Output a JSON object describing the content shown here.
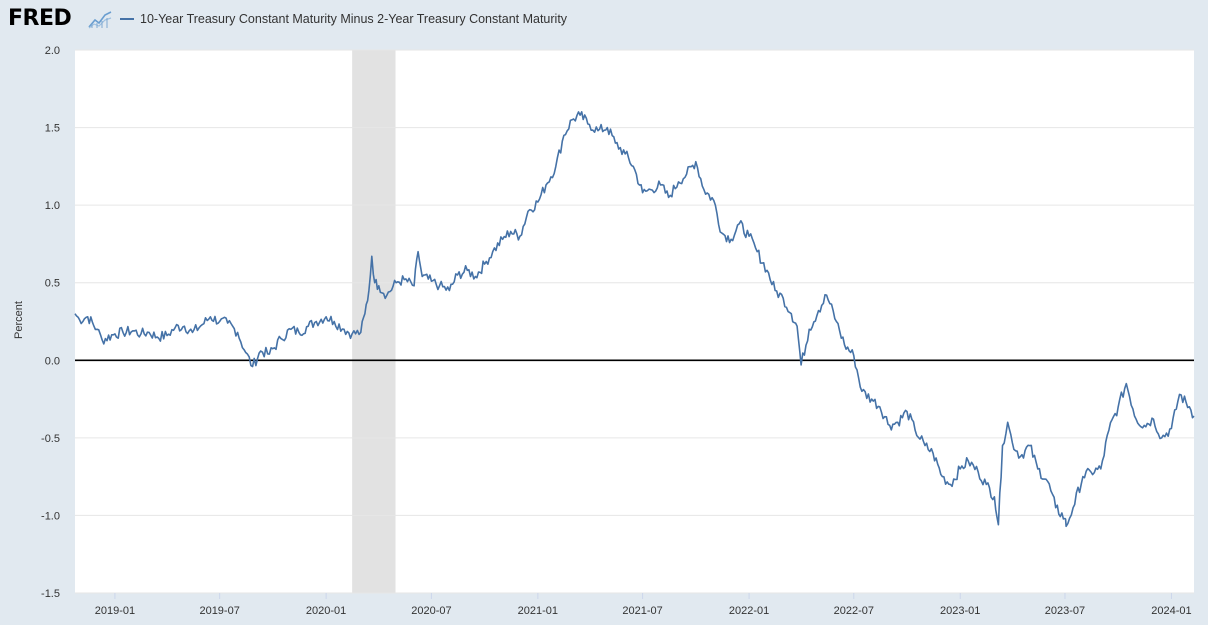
{
  "header": {
    "logo_text": "FRED",
    "legend_label": "10-Year Treasury Constant Maturity Minus 2-Year Treasury Constant Maturity"
  },
  "colors": {
    "series": "#4572a7",
    "recession": "#e2e2e2",
    "grid": "#e6e6e6",
    "background": "#e1e9f0",
    "plot": "#ffffff",
    "zero_line": "#000000"
  },
  "chart_data": {
    "type": "line",
    "title": "10-Year Treasury Constant Maturity Minus 2-Year Treasury Constant Maturity",
    "xlabel": "",
    "ylabel": "Percent",
    "xlim": [
      "2018-10-24",
      "2024-02-09"
    ],
    "ylim": [
      -1.5,
      2.0
    ],
    "yticks": [
      2.0,
      1.5,
      1.0,
      0.5,
      0.0,
      -0.5,
      -1.0,
      -1.5
    ],
    "ytick_labels": [
      "2.0",
      "1.5",
      "1.0",
      "0.5",
      "0.0",
      "-0.5",
      "-1.0",
      "-1.5"
    ],
    "xticks": [
      "2019-01-01",
      "2019-07-01",
      "2020-01-01",
      "2020-07-01",
      "2021-01-01",
      "2021-07-01",
      "2022-01-01",
      "2022-07-01",
      "2023-01-01",
      "2023-07-01",
      "2024-01-01"
    ],
    "xtick_labels": [
      "2019-01",
      "2019-07",
      "2020-01",
      "2020-07",
      "2021-01",
      "2021-07",
      "2022-01",
      "2022-07",
      "2023-01",
      "2023-07",
      "2024-01"
    ],
    "grid": true,
    "legend_position": "top-left",
    "recessions": [
      [
        "2020-02-15",
        "2020-04-30"
      ]
    ],
    "series": [
      {
        "name": "10-Year Treasury Constant Maturity Minus 2-Year Treasury Constant Maturity",
        "x": [
          "2018-10-24",
          "2018-11-01",
          "2018-11-15",
          "2018-12-01",
          "2018-12-10",
          "2019-01-01",
          "2019-01-15",
          "2019-02-01",
          "2019-02-15",
          "2019-03-01",
          "2019-03-15",
          "2019-04-01",
          "2019-04-15",
          "2019-05-01",
          "2019-05-15",
          "2019-06-01",
          "2019-06-15",
          "2019-07-01",
          "2019-07-15",
          "2019-08-01",
          "2019-08-15",
          "2019-08-27",
          "2019-09-10",
          "2019-09-25",
          "2019-10-15",
          "2019-11-01",
          "2019-11-15",
          "2019-12-01",
          "2019-12-15",
          "2020-01-01",
          "2020-01-15",
          "2020-02-01",
          "2020-02-15",
          "2020-03-01",
          "2020-03-08",
          "2020-03-15",
          "2020-03-20",
          "2020-03-25",
          "2020-04-01",
          "2020-04-15",
          "2020-05-01",
          "2020-05-15",
          "2020-06-01",
          "2020-06-08",
          "2020-06-15",
          "2020-07-01",
          "2020-07-15",
          "2020-08-01",
          "2020-08-15",
          "2020-09-01",
          "2020-09-15",
          "2020-10-01",
          "2020-10-15",
          "2020-11-01",
          "2020-11-15",
          "2020-12-01",
          "2020-12-15",
          "2021-01-01",
          "2021-01-15",
          "2021-02-01",
          "2021-02-15",
          "2021-03-01",
          "2021-03-15",
          "2021-03-31",
          "2021-04-15",
          "2021-05-01",
          "2021-05-15",
          "2021-06-01",
          "2021-06-15",
          "2021-07-01",
          "2021-07-15",
          "2021-08-01",
          "2021-08-15",
          "2021-09-01",
          "2021-09-15",
          "2021-10-01",
          "2021-10-15",
          "2021-11-01",
          "2021-11-15",
          "2021-12-01",
          "2021-12-15",
          "2022-01-01",
          "2022-01-15",
          "2022-02-01",
          "2022-02-15",
          "2022-03-01",
          "2022-03-15",
          "2022-03-25",
          "2022-04-01",
          "2022-04-15",
          "2022-05-01",
          "2022-05-15",
          "2022-06-01",
          "2022-06-15",
          "2022-07-01",
          "2022-07-15",
          "2022-08-01",
          "2022-08-15",
          "2022-09-01",
          "2022-09-15",
          "2022-10-01",
          "2022-10-15",
          "2022-11-01",
          "2022-11-15",
          "2022-12-01",
          "2022-12-15",
          "2023-01-01",
          "2023-01-15",
          "2023-02-01",
          "2023-02-15",
          "2023-03-01",
          "2023-03-08",
          "2023-03-15",
          "2023-03-24",
          "2023-04-01",
          "2023-04-15",
          "2023-05-01",
          "2023-05-15",
          "2023-06-01",
          "2023-06-15",
          "2023-07-01",
          "2023-07-03",
          "2023-07-15",
          "2023-08-01",
          "2023-08-15",
          "2023-09-01",
          "2023-09-15",
          "2023-10-01",
          "2023-10-15",
          "2023-11-01",
          "2023-11-15",
          "2023-12-01",
          "2023-12-15",
          "2024-01-01",
          "2024-01-15",
          "2024-02-01",
          "2024-02-09"
        ],
        "values": [
          0.3,
          0.26,
          0.28,
          0.2,
          0.13,
          0.17,
          0.18,
          0.19,
          0.17,
          0.18,
          0.15,
          0.16,
          0.21,
          0.22,
          0.18,
          0.23,
          0.28,
          0.25,
          0.24,
          0.18,
          0.05,
          -0.04,
          0.06,
          0.04,
          0.14,
          0.2,
          0.18,
          0.22,
          0.25,
          0.28,
          0.25,
          0.2,
          0.17,
          0.18,
          0.3,
          0.45,
          0.67,
          0.5,
          0.48,
          0.42,
          0.5,
          0.52,
          0.48,
          0.7,
          0.54,
          0.51,
          0.48,
          0.45,
          0.55,
          0.58,
          0.54,
          0.62,
          0.7,
          0.78,
          0.83,
          0.8,
          0.96,
          1.02,
          1.13,
          1.25,
          1.45,
          1.55,
          1.58,
          1.52,
          1.48,
          1.5,
          1.4,
          1.33,
          1.25,
          1.08,
          1.1,
          1.13,
          1.05,
          1.15,
          1.2,
          1.28,
          1.1,
          1.03,
          0.82,
          0.78,
          0.88,
          0.8,
          0.7,
          0.58,
          0.45,
          0.4,
          0.3,
          0.22,
          -0.03,
          0.2,
          0.32,
          0.42,
          0.25,
          0.1,
          0.03,
          -0.2,
          -0.25,
          -0.3,
          -0.42,
          -0.4,
          -0.33,
          -0.45,
          -0.55,
          -0.6,
          -0.75,
          -0.8,
          -0.7,
          -0.65,
          -0.72,
          -0.8,
          -0.88,
          -1.06,
          -0.55,
          -0.4,
          -0.53,
          -0.62,
          -0.55,
          -0.7,
          -0.78,
          -0.95,
          -1.02,
          -1.07,
          -0.95,
          -0.75,
          -0.72,
          -0.7,
          -0.45,
          -0.3,
          -0.15,
          -0.38,
          -0.42,
          -0.38,
          -0.5,
          -0.44,
          -0.22,
          -0.3,
          -0.36
        ]
      }
    ]
  }
}
